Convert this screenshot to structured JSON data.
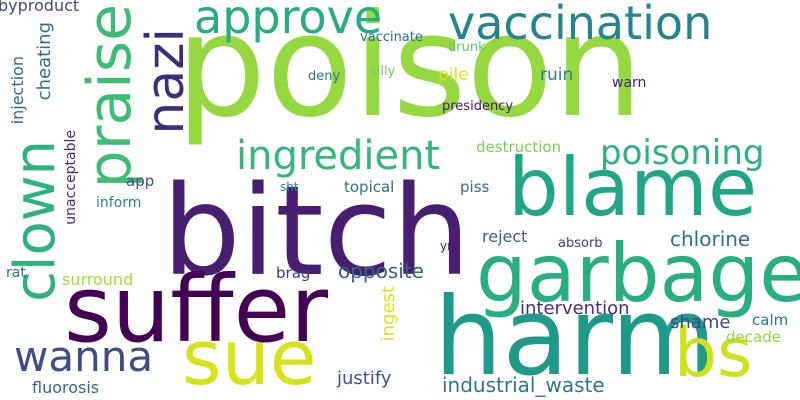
{
  "words": [
    {
      "text": "poison",
      "color": "#95d840"
    },
    {
      "text": "bitch",
      "color": "#481f70"
    },
    {
      "text": "blame",
      "color": "#21a685"
    },
    {
      "text": "harm",
      "color": "#1f9a8a"
    },
    {
      "text": "suffer",
      "color": "#440154"
    },
    {
      "text": "garbage",
      "color": "#29af7f"
    },
    {
      "text": "sue",
      "color": "#d8e219"
    },
    {
      "text": "praise",
      "color": "#3dbc74"
    },
    {
      "text": "clown",
      "color": "#2db27d"
    },
    {
      "text": "nazi",
      "color": "#3b2f7c"
    },
    {
      "text": "approve",
      "color": "#27ad81"
    },
    {
      "text": "vaccination",
      "color": "#25838e"
    },
    {
      "text": "ingredient",
      "color": "#35b779"
    },
    {
      "text": "poisoning",
      "color": "#2db27d"
    },
    {
      "text": "wanna",
      "color": "#3e4c8a"
    },
    {
      "text": "bs",
      "color": "#cde11d"
    },
    {
      "text": "chlorine",
      "color": "#2c728e"
    },
    {
      "text": "opposite",
      "color": "#33638d"
    },
    {
      "text": "industrial_waste",
      "color": "#2a778e"
    },
    {
      "text": "intervention",
      "color": "#472d7b"
    },
    {
      "text": "shame",
      "color": "#404688"
    },
    {
      "text": "justify",
      "color": "#3b528b"
    },
    {
      "text": "fluorosis",
      "color": "#31688e"
    },
    {
      "text": "byproduct",
      "color": "#3e4989"
    },
    {
      "text": "injection",
      "color": "#31688e"
    },
    {
      "text": "cheating",
      "color": "#2e6e8e"
    },
    {
      "text": "unacceptable",
      "color": "#482878"
    },
    {
      "text": "destruction",
      "color": "#7ad151"
    },
    {
      "text": "ingest",
      "color": "#dde318"
    },
    {
      "text": "presidency",
      "color": "#481769"
    },
    {
      "text": "vaccinate",
      "color": "#2c718e"
    },
    {
      "text": "drunk",
      "color": "#5ec962"
    },
    {
      "text": "silly",
      "color": "#6ccd5a"
    },
    {
      "text": "deny",
      "color": "#2a768e"
    },
    {
      "text": "pile",
      "color": "#dce319"
    },
    {
      "text": "ruin",
      "color": "#277f8e"
    },
    {
      "text": "warn",
      "color": "#482475"
    },
    {
      "text": "app",
      "color": "#3a548c"
    },
    {
      "text": "inform",
      "color": "#238a8d"
    },
    {
      "text": "topical",
      "color": "#2c718e"
    },
    {
      "text": "piss",
      "color": "#31688e"
    },
    {
      "text": "sht",
      "color": "#20928c"
    },
    {
      "text": "reject",
      "color": "#355f8d"
    },
    {
      "text": "absorb",
      "color": "#443983"
    },
    {
      "text": "yr",
      "color": "#471365"
    },
    {
      "text": "rat",
      "color": "#2c718e"
    },
    {
      "text": "surround",
      "color": "#a5db36"
    },
    {
      "text": "brag",
      "color": "#453781"
    },
    {
      "text": "calm",
      "color": "#2a788e"
    },
    {
      "text": "decade",
      "color": "#90d743"
    }
  ]
}
